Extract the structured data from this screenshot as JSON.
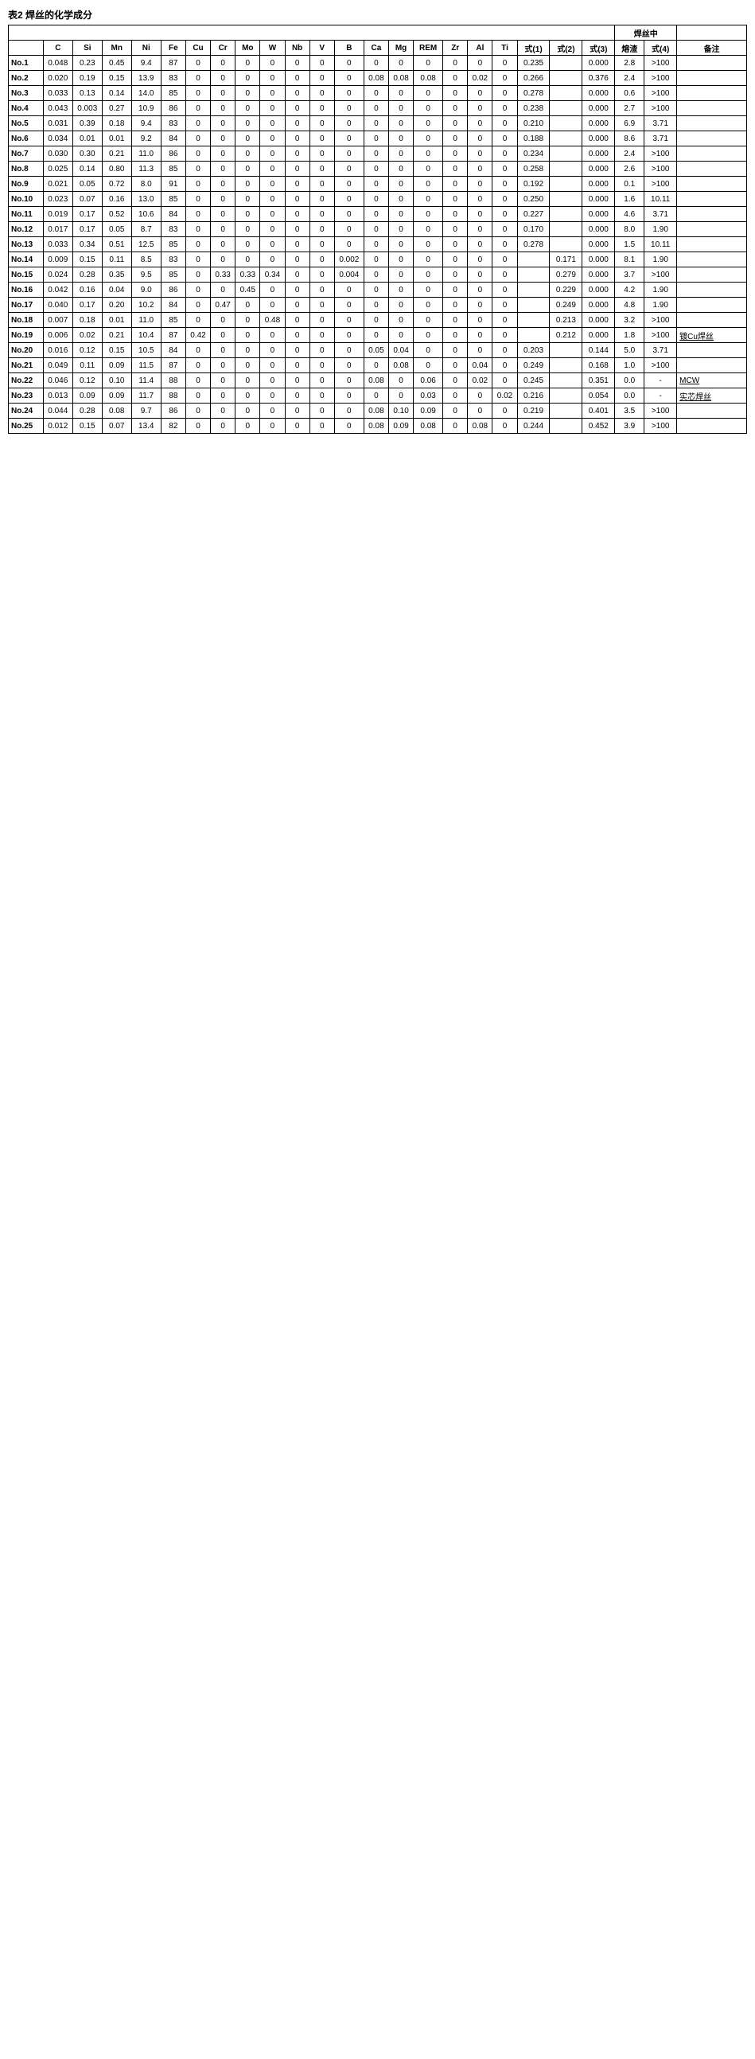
{
  "title": "表2 焊丝的化学成分",
  "header_groups": {
    "wire": "焊丝中"
  },
  "columns": [
    "",
    "C",
    "Si",
    "Mn",
    "Ni",
    "Fe",
    "Cu",
    "Cr",
    "Mo",
    "W",
    "Nb",
    "V",
    "B",
    "Ca",
    "Mg",
    "REM",
    "Zr",
    "Al",
    "Ti",
    "式(1)",
    "式(2)",
    "式(3)",
    "熔渣",
    "式(4)",
    "备注"
  ],
  "rows": [
    {
      "id": "No.1",
      "c": "0.048",
      "si": "0.23",
      "mn": "0.45",
      "ni": "9.4",
      "fe": "87",
      "cu": "0",
      "cr": "0",
      "mo": "0",
      "w": "0",
      "nb": "0",
      "v": "0",
      "b": "0",
      "ca": "0",
      "mg": "0",
      "rem": "0",
      "zr": "0",
      "al": "0",
      "ti": "0",
      "f1": "0.235",
      "f2": "",
      "f3": "0.000",
      "slag": "2.8",
      "f4": ">100",
      "remark": ""
    },
    {
      "id": "No.2",
      "c": "0.020",
      "si": "0.19",
      "mn": "0.15",
      "ni": "13.9",
      "fe": "83",
      "cu": "0",
      "cr": "0",
      "mo": "0",
      "w": "0",
      "nb": "0",
      "v": "0",
      "b": "0",
      "ca": "0.08",
      "mg": "0.08",
      "rem": "0.08",
      "zr": "0",
      "al": "0.02",
      "ti": "0",
      "f1": "0.266",
      "f2": "",
      "f3": "0.376",
      "slag": "2.4",
      "f4": ">100",
      "remark": ""
    },
    {
      "id": "No.3",
      "c": "0.033",
      "si": "0.13",
      "mn": "0.14",
      "ni": "14.0",
      "fe": "85",
      "cu": "0",
      "cr": "0",
      "mo": "0",
      "w": "0",
      "nb": "0",
      "v": "0",
      "b": "0",
      "ca": "0",
      "mg": "0",
      "rem": "0",
      "zr": "0",
      "al": "0",
      "ti": "0",
      "f1": "0.278",
      "f2": "",
      "f3": "0.000",
      "slag": "0.6",
      "f4": ">100",
      "remark": ""
    },
    {
      "id": "No.4",
      "c": "0.043",
      "si": "0.003",
      "mn": "0.27",
      "ni": "10.9",
      "fe": "86",
      "cu": "0",
      "cr": "0",
      "mo": "0",
      "w": "0",
      "nb": "0",
      "v": "0",
      "b": "0",
      "ca": "0",
      "mg": "0",
      "rem": "0",
      "zr": "0",
      "al": "0",
      "ti": "0",
      "f1": "0.238",
      "f2": "",
      "f3": "0.000",
      "slag": "2.7",
      "f4": ">100",
      "remark": ""
    },
    {
      "id": "No.5",
      "c": "0.031",
      "si": "0.39",
      "mn": "0.18",
      "ni": "9.4",
      "fe": "83",
      "cu": "0",
      "cr": "0",
      "mo": "0",
      "w": "0",
      "nb": "0",
      "v": "0",
      "b": "0",
      "ca": "0",
      "mg": "0",
      "rem": "0",
      "zr": "0",
      "al": "0",
      "ti": "0",
      "f1": "0.210",
      "f2": "",
      "f3": "0.000",
      "slag": "6.9",
      "f4": "3.71",
      "remark": ""
    },
    {
      "id": "No.6",
      "c": "0.034",
      "si": "0.01",
      "mn": "0.01",
      "ni": "9.2",
      "fe": "84",
      "cu": "0",
      "cr": "0",
      "mo": "0",
      "w": "0",
      "nb": "0",
      "v": "0",
      "b": "0",
      "ca": "0",
      "mg": "0",
      "rem": "0",
      "zr": "0",
      "al": "0",
      "ti": "0",
      "f1": "0.188",
      "f2": "",
      "f3": "0.000",
      "slag": "8.6",
      "f4": "3.71",
      "remark": ""
    },
    {
      "id": "No.7",
      "c": "0.030",
      "si": "0.30",
      "mn": "0.21",
      "ni": "11.0",
      "fe": "86",
      "cu": "0",
      "cr": "0",
      "mo": "0",
      "w": "0",
      "nb": "0",
      "v": "0",
      "b": "0",
      "ca": "0",
      "mg": "0",
      "rem": "0",
      "zr": "0",
      "al": "0",
      "ti": "0",
      "f1": "0.234",
      "f2": "",
      "f3": "0.000",
      "slag": "2.4",
      "f4": ">100",
      "remark": ""
    },
    {
      "id": "No.8",
      "c": "0.025",
      "si": "0.14",
      "mn": "0.80",
      "ni": "11.3",
      "fe": "85",
      "cu": "0",
      "cr": "0",
      "mo": "0",
      "w": "0",
      "nb": "0",
      "v": "0",
      "b": "0",
      "ca": "0",
      "mg": "0",
      "rem": "0",
      "zr": "0",
      "al": "0",
      "ti": "0",
      "f1": "0.258",
      "f2": "",
      "f3": "0.000",
      "slag": "2.6",
      "f4": ">100",
      "remark": ""
    },
    {
      "id": "No.9",
      "c": "0.021",
      "si": "0.05",
      "mn": "0.72",
      "ni": "8.0",
      "fe": "91",
      "cu": "0",
      "cr": "0",
      "mo": "0",
      "w": "0",
      "nb": "0",
      "v": "0",
      "b": "0",
      "ca": "0",
      "mg": "0",
      "rem": "0",
      "zr": "0",
      "al": "0",
      "ti": "0",
      "f1": "0.192",
      "f2": "",
      "f3": "0.000",
      "slag": "0.1",
      "f4": ">100",
      "remark": ""
    },
    {
      "id": "No.10",
      "c": "0.023",
      "si": "0.07",
      "mn": "0.16",
      "ni": "13.0",
      "fe": "85",
      "cu": "0",
      "cr": "0",
      "mo": "0",
      "w": "0",
      "nb": "0",
      "v": "0",
      "b": "0",
      "ca": "0",
      "mg": "0",
      "rem": "0",
      "zr": "0",
      "al": "0",
      "ti": "0",
      "f1": "0.250",
      "f2": "",
      "f3": "0.000",
      "slag": "1.6",
      "f4": "10.11",
      "remark": ""
    },
    {
      "id": "No.11",
      "c": "0.019",
      "si": "0.17",
      "mn": "0.52",
      "ni": "10.6",
      "fe": "84",
      "cu": "0",
      "cr": "0",
      "mo": "0",
      "w": "0",
      "nb": "0",
      "v": "0",
      "b": "0",
      "ca": "0",
      "mg": "0",
      "rem": "0",
      "zr": "0",
      "al": "0",
      "ti": "0",
      "f1": "0.227",
      "f2": "",
      "f3": "0.000",
      "slag": "4.6",
      "f4": "3.71",
      "remark": ""
    },
    {
      "id": "No.12",
      "c": "0.017",
      "si": "0.17",
      "mn": "0.05",
      "ni": "8.7",
      "fe": "83",
      "cu": "0",
      "cr": "0",
      "mo": "0",
      "w": "0",
      "nb": "0",
      "v": "0",
      "b": "0",
      "ca": "0",
      "mg": "0",
      "rem": "0",
      "zr": "0",
      "al": "0",
      "ti": "0",
      "f1": "0.170",
      "f2": "",
      "f3": "0.000",
      "slag": "8.0",
      "f4": "1.90",
      "remark": ""
    },
    {
      "id": "No.13",
      "c": "0.033",
      "si": "0.34",
      "mn": "0.51",
      "ni": "12.5",
      "fe": "85",
      "cu": "0",
      "cr": "0",
      "mo": "0",
      "w": "0",
      "nb": "0",
      "v": "0",
      "b": "0",
      "ca": "0",
      "mg": "0",
      "rem": "0",
      "zr": "0",
      "al": "0",
      "ti": "0",
      "f1": "0.278",
      "f2": "",
      "f3": "0.000",
      "slag": "1.5",
      "f4": "10.11",
      "remark": ""
    },
    {
      "id": "No.14",
      "c": "0.009",
      "si": "0.15",
      "mn": "0.11",
      "ni": "8.5",
      "fe": "83",
      "cu": "0",
      "cr": "0",
      "mo": "0",
      "w": "0",
      "nb": "0",
      "v": "0",
      "b": "0.002",
      "ca": "0",
      "mg": "0",
      "rem": "0",
      "zr": "0",
      "al": "0",
      "ti": "0",
      "f1": "",
      "f2": "0.171",
      "f3": "0.000",
      "slag": "8.1",
      "f4": "1.90",
      "remark": ""
    },
    {
      "id": "No.15",
      "c": "0.024",
      "si": "0.28",
      "mn": "0.35",
      "ni": "9.5",
      "fe": "85",
      "cu": "0",
      "cr": "0.33",
      "mo": "0.33",
      "w": "0.34",
      "nb": "0",
      "v": "0",
      "b": "0.004",
      "ca": "0",
      "mg": "0",
      "rem": "0",
      "zr": "0",
      "al": "0",
      "ti": "0",
      "f1": "",
      "f2": "0.279",
      "f3": "0.000",
      "slag": "3.7",
      "f4": ">100",
      "remark": ""
    },
    {
      "id": "No.16",
      "c": "0.042",
      "si": "0.16",
      "mn": "0.04",
      "ni": "9.0",
      "fe": "86",
      "cu": "0",
      "cr": "0",
      "mo": "0.45",
      "w": "0",
      "nb": "0",
      "v": "0",
      "b": "0",
      "ca": "0",
      "mg": "0",
      "rem": "0",
      "zr": "0",
      "al": "0",
      "ti": "0",
      "f1": "",
      "f2": "0.229",
      "f3": "0.000",
      "slag": "4.2",
      "f4": "1.90",
      "remark": ""
    },
    {
      "id": "No.17",
      "c": "0.040",
      "si": "0.17",
      "mn": "0.20",
      "ni": "10.2",
      "fe": "84",
      "cu": "0",
      "cr": "0.47",
      "mo": "0",
      "w": "0",
      "nb": "0",
      "v": "0",
      "b": "0",
      "ca": "0",
      "mg": "0",
      "rem": "0",
      "zr": "0",
      "al": "0",
      "ti": "0",
      "f1": "",
      "f2": "0.249",
      "f3": "0.000",
      "slag": "4.8",
      "f4": "1.90",
      "remark": ""
    },
    {
      "id": "No.18",
      "c": "0.007",
      "si": "0.18",
      "mn": "0.01",
      "ni": "11.0",
      "fe": "85",
      "cu": "0",
      "cr": "0",
      "mo": "0",
      "w": "0.48",
      "nb": "0",
      "v": "0",
      "b": "0",
      "ca": "0",
      "mg": "0",
      "rem": "0",
      "zr": "0",
      "al": "0",
      "ti": "0",
      "f1": "",
      "f2": "0.213",
      "f3": "0.000",
      "slag": "3.2",
      "f4": ">100",
      "remark": ""
    },
    {
      "id": "No.19",
      "c": "0.006",
      "si": "0.02",
      "mn": "0.21",
      "ni": "10.4",
      "fe": "87",
      "cu": "0.42",
      "cr": "0",
      "mo": "0",
      "w": "0",
      "nb": "0",
      "v": "0",
      "b": "0",
      "ca": "0",
      "mg": "0",
      "rem": "0",
      "zr": "0",
      "al": "0",
      "ti": "0",
      "f1": "",
      "f2": "0.212",
      "f3": "0.000",
      "slag": "1.8",
      "f4": ">100",
      "remark": "镀Cu焊丝"
    },
    {
      "id": "No.20",
      "c": "0.016",
      "si": "0.12",
      "mn": "0.15",
      "ni": "10.5",
      "fe": "84",
      "cu": "0",
      "cr": "0",
      "mo": "0",
      "w": "0",
      "nb": "0",
      "v": "0",
      "b": "0",
      "ca": "0.05",
      "mg": "0.04",
      "rem": "0",
      "zr": "0",
      "al": "0",
      "ti": "0",
      "f1": "0.203",
      "f2": "",
      "f3": "0.144",
      "slag": "5.0",
      "f4": "3.71",
      "remark": ""
    },
    {
      "id": "No.21",
      "c": "0.049",
      "si": "0.11",
      "mn": "0.09",
      "ni": "11.5",
      "fe": "87",
      "cu": "0",
      "cr": "0",
      "mo": "0",
      "w": "0",
      "nb": "0",
      "v": "0",
      "b": "0",
      "ca": "0",
      "mg": "0.08",
      "rem": "0",
      "zr": "0",
      "al": "0.04",
      "ti": "0",
      "f1": "0.249",
      "f2": "",
      "f3": "0.168",
      "slag": "1.0",
      "f4": ">100",
      "remark": ""
    },
    {
      "id": "No.22",
      "c": "0.046",
      "si": "0.12",
      "mn": "0.10",
      "ni": "11.4",
      "fe": "88",
      "cu": "0",
      "cr": "0",
      "mo": "0",
      "w": "0",
      "nb": "0",
      "v": "0",
      "b": "0",
      "ca": "0.08",
      "mg": "0",
      "rem": "0.06",
      "zr": "0",
      "al": "0.02",
      "ti": "0",
      "f1": "0.245",
      "f2": "",
      "f3": "0.351",
      "slag": "0.0",
      "f4": "-",
      "remark": "MCW"
    },
    {
      "id": "No.23",
      "c": "0.013",
      "si": "0.09",
      "mn": "0.09",
      "ni": "11.7",
      "fe": "88",
      "cu": "0",
      "cr": "0",
      "mo": "0",
      "w": "0",
      "nb": "0",
      "v": "0",
      "b": "0",
      "ca": "0",
      "mg": "0",
      "rem": "0.03",
      "zr": "0",
      "al": "0",
      "ti": "0.02",
      "f1": "0.216",
      "f2": "",
      "f3": "0.054",
      "slag": "0.0",
      "f4": "-",
      "remark": "实芯焊丝"
    },
    {
      "id": "No.24",
      "c": "0.044",
      "si": "0.28",
      "mn": "0.08",
      "ni": "9.7",
      "fe": "86",
      "cu": "0",
      "cr": "0",
      "mo": "0",
      "w": "0",
      "nb": "0",
      "v": "0",
      "b": "0",
      "ca": "0.08",
      "mg": "0.10",
      "rem": "0.09",
      "zr": "0",
      "al": "0",
      "ti": "0",
      "f1": "0.219",
      "f2": "",
      "f3": "0.401",
      "slag": "3.5",
      "f4": ">100",
      "remark": ""
    },
    {
      "id": "No.25",
      "c": "0.012",
      "si": "0.15",
      "mn": "0.07",
      "ni": "13.4",
      "fe": "82",
      "cu": "0",
      "cr": "0",
      "mo": "0",
      "w": "0",
      "nb": "0",
      "v": "0",
      "b": "0",
      "ca": "0.08",
      "mg": "0.09",
      "rem": "0.08",
      "zr": "0",
      "al": "0.08",
      "ti": "0",
      "f1": "0.244",
      "f2": "",
      "f3": "0.452",
      "slag": "3.9",
      "f4": ">100",
      "remark": ""
    }
  ]
}
